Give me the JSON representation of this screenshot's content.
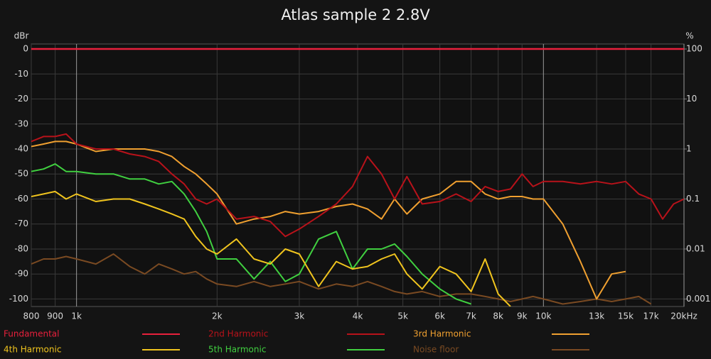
{
  "chart_data": {
    "type": "line",
    "title": "Atlas sample 2 2.8V",
    "y_label": "dBr",
    "y2_label": "%",
    "x_log": true,
    "y2_log": true,
    "grid": true,
    "legend_position": "bottom",
    "xlim": [
      800,
      20000
    ],
    "ylim": [
      -103,
      2
    ],
    "y2lim": [
      0.000708,
      125.9
    ],
    "xticks": [
      {
        "value": 800,
        "label": "800"
      },
      {
        "value": 900,
        "label": "900"
      },
      {
        "value": 1000,
        "label": "1k"
      },
      {
        "value": 2000,
        "label": "2k"
      },
      {
        "value": 3000,
        "label": "3k"
      },
      {
        "value": 4000,
        "label": "4k"
      },
      {
        "value": 5000,
        "label": "5k"
      },
      {
        "value": 6000,
        "label": "6k"
      },
      {
        "value": 7000,
        "label": "7k"
      },
      {
        "value": 8000,
        "label": "8k"
      },
      {
        "value": 9000,
        "label": "9k"
      },
      {
        "value": 10000,
        "label": "10k"
      },
      {
        "value": 13000,
        "label": "13k"
      },
      {
        "value": 15000,
        "label": "15k"
      },
      {
        "value": 17000,
        "label": "17k"
      },
      {
        "value": 20000,
        "label": "20kHz"
      }
    ],
    "yticks": [
      0,
      -10,
      -20,
      -30,
      -40,
      -50,
      -60,
      -70,
      -80,
      -90,
      -100
    ],
    "y2ticks": [
      100,
      10,
      1,
      0.1,
      0.01,
      0.001
    ],
    "x": [
      800,
      850,
      900,
      950,
      1000,
      1100,
      1200,
      1300,
      1400,
      1500,
      1600,
      1700,
      1800,
      1900,
      2000,
      2200,
      2400,
      2600,
      2800,
      3000,
      3300,
      3600,
      3900,
      4200,
      4500,
      4800,
      5100,
      5500,
      6000,
      6500,
      7000,
      7500,
      8000,
      8500,
      9000,
      9500,
      10000,
      11000,
      12000,
      13000,
      14000,
      15000,
      16000,
      17000,
      18000,
      19000,
      20000
    ],
    "series": [
      {
        "name": "Fundamental",
        "color": "#e8203c",
        "values": [
          0,
          0,
          0,
          0,
          0,
          0,
          0,
          0,
          0,
          0,
          0,
          0,
          0,
          0,
          0,
          0,
          0,
          0,
          0,
          0,
          0,
          0,
          0,
          0,
          0,
          0,
          0,
          0,
          0,
          0,
          0,
          0,
          0,
          0,
          0,
          0,
          0,
          0,
          0,
          0,
          0,
          0,
          0,
          0,
          0,
          0,
          0
        ]
      },
      {
        "name": "2nd Harmonic",
        "color": "#b8121a",
        "values": [
          -37,
          -35,
          -35,
          -34,
          -38,
          -40,
          -40,
          -42,
          -43,
          -45,
          -50,
          -54,
          -60,
          -62,
          -60,
          -68,
          -67,
          -69,
          -75,
          -72,
          -67,
          -62,
          -55,
          -43,
          -50,
          -60,
          -51,
          -62,
          -61,
          -58,
          -61,
          -55,
          -57,
          -56,
          -50,
          -55,
          -53,
          -53,
          -54,
          -53,
          -54,
          -53,
          -58,
          -60,
          -68,
          -62,
          -60
        ]
      },
      {
        "name": "3rd Harmonic",
        "color": "#f0a030",
        "values": [
          -39,
          -38,
          -37,
          -37,
          -38,
          -41,
          -40,
          -40,
          -40,
          -41,
          -43,
          -47,
          -50,
          -54,
          -58,
          -70,
          -68,
          -67,
          -65,
          -66,
          -65,
          -63,
          -62,
          -64,
          -68,
          -60,
          -66,
          -60,
          -58,
          -53,
          -53,
          -58,
          -60,
          -59,
          -59,
          -60,
          -60,
          -70,
          -85,
          -100,
          -90,
          -89,
          null,
          null,
          null,
          null,
          null
        ]
      },
      {
        "name": "4th Harmonic",
        "color": "#f0c41e",
        "values": [
          -59,
          -58,
          -57,
          -60,
          -58,
          -61,
          -60,
          -60,
          -62,
          -64,
          -66,
          -68,
          -75,
          -80,
          -82,
          -76,
          -84,
          -86,
          -80,
          -82,
          -95,
          -85,
          -88,
          -87,
          -84,
          -82,
          -90,
          -96,
          -87,
          -90,
          -97,
          -84,
          -98,
          -103,
          null,
          null,
          null,
          null,
          null,
          null,
          null,
          null,
          null,
          null,
          null,
          null,
          null
        ]
      },
      {
        "name": "5th Harmonic",
        "color": "#40d040",
        "values": [
          -49,
          -48,
          -46,
          -49,
          -49,
          -50,
          -50,
          -52,
          -52,
          -54,
          -53,
          -58,
          -65,
          -73,
          -84,
          -84,
          -92,
          -85,
          -93,
          -90,
          -76,
          -73,
          -88,
          -80,
          -80,
          -78,
          -83,
          -90,
          -96,
          -100,
          -102,
          null,
          null,
          null,
          null,
          null,
          null,
          null,
          null,
          null,
          null,
          null,
          null,
          null,
          null,
          null,
          null
        ]
      },
      {
        "name": "Noise floor",
        "color": "#7a4a22",
        "values": [
          -86,
          -84,
          -84,
          -83,
          -84,
          -86,
          -82,
          -87,
          -90,
          -86,
          -88,
          -90,
          -89,
          -92,
          -94,
          -95,
          -93,
          -95,
          -94,
          -93,
          -96,
          -94,
          -95,
          -93,
          -95,
          -97,
          -98,
          -97,
          -99,
          -98,
          -98,
          -99,
          -100,
          -101,
          -100,
          -99,
          -100,
          -102,
          -101,
          -100,
          -101,
          -100,
          -99,
          -102,
          null,
          null,
          null
        ]
      }
    ]
  }
}
